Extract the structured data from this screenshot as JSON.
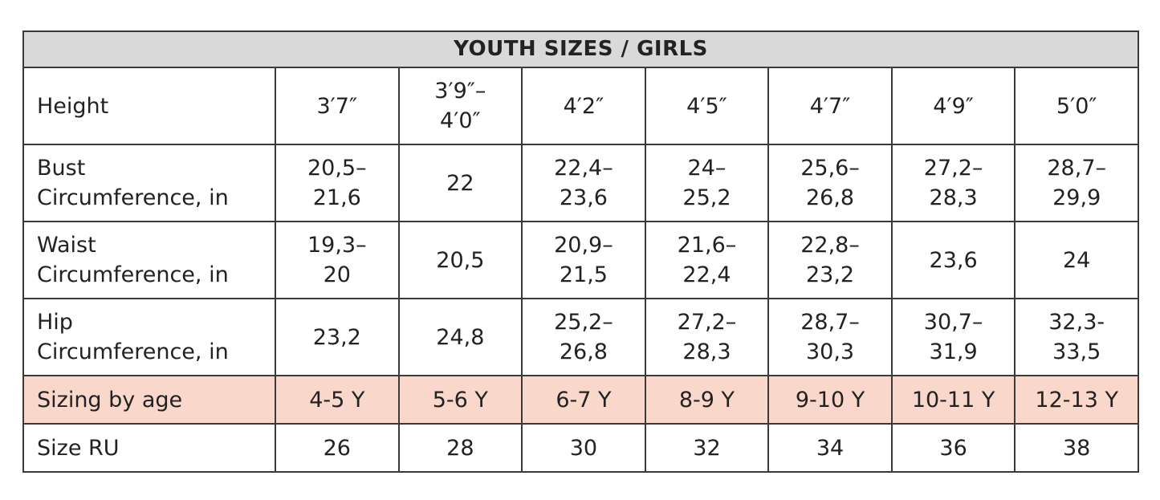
{
  "table": {
    "title": "YOUTH SIZES / GIRLS",
    "rows": [
      [
        "Height",
        "3′7″",
        "3′9″–\n4′0″",
        "4′2″",
        "4′5″",
        "4′7″",
        "4′9″",
        "5′0″"
      ],
      [
        "Bust\nCircumference, in",
        "20,5–\n21,6",
        "22",
        "22,4–\n23,6",
        "24–\n25,2",
        "25,6–\n26,8",
        "27,2–\n28,3",
        "28,7–\n29,9"
      ],
      [
        "Waist\nCircumference, in",
        "19,3–\n20",
        "20,5",
        "20,9–\n21,5",
        "21,6–\n22,4",
        "22,8–\n23,2",
        "23,6",
        "24"
      ],
      [
        "Hip\nCircumference, in",
        "23,2",
        "24,8",
        "25,2–\n26,8",
        "27,2–\n28,3",
        "28,7–\n30,3",
        "30,7–\n31,9",
        "32,3-\n33,5"
      ],
      [
        "Sizing by age",
        "4-5 Y",
        "5-6 Y",
        "6-7 Y",
        "8-9 Y",
        "9-10 Y",
        "10-11 Y",
        "12-13 Y"
      ],
      [
        "Size RU",
        "26",
        "28",
        "30",
        "32",
        "34",
        "36",
        "38"
      ]
    ]
  }
}
